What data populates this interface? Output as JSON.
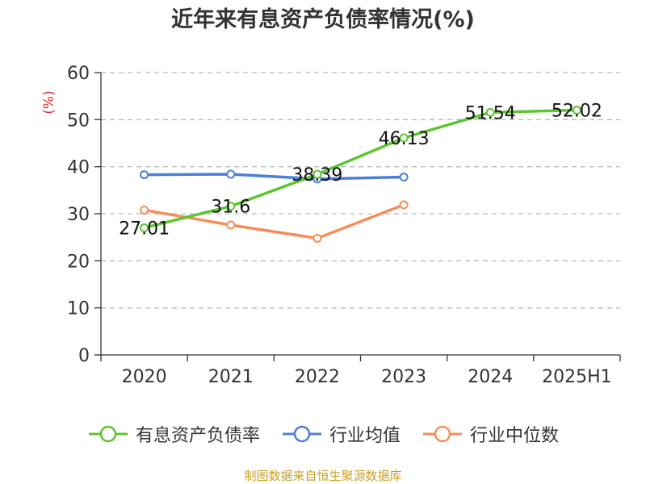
{
  "chart_data": {
    "type": "line",
    "title": "近年来有息资产负债率情况(%)",
    "ylabel": "(%)",
    "categories": [
      "2020",
      "2021",
      "2022",
      "2023",
      "2024",
      "2025H1"
    ],
    "ylim": [
      0,
      60
    ],
    "yticks": [
      0,
      10,
      20,
      30,
      40,
      50,
      60
    ],
    "grid": true,
    "legend_position": "bottom",
    "series": [
      {
        "name": "有息资产负债率",
        "color": "#5cc630",
        "values": [
          27.01,
          31.6,
          38.39,
          46.13,
          51.54,
          52.02
        ],
        "labels": [
          "27.01",
          "31.6",
          "38.39",
          "46.13",
          "51.54",
          "52.02"
        ]
      },
      {
        "name": "行业均值",
        "color": "#4b7fdb",
        "values": [
          38.3,
          38.4,
          37.4,
          37.8,
          null,
          null
        ]
      },
      {
        "name": "行业中位数",
        "color": "#f58e5a",
        "values": [
          30.8,
          27.6,
          24.8,
          31.9,
          null,
          null
        ]
      }
    ]
  },
  "source": "制图数据来自恒生聚源数据库"
}
